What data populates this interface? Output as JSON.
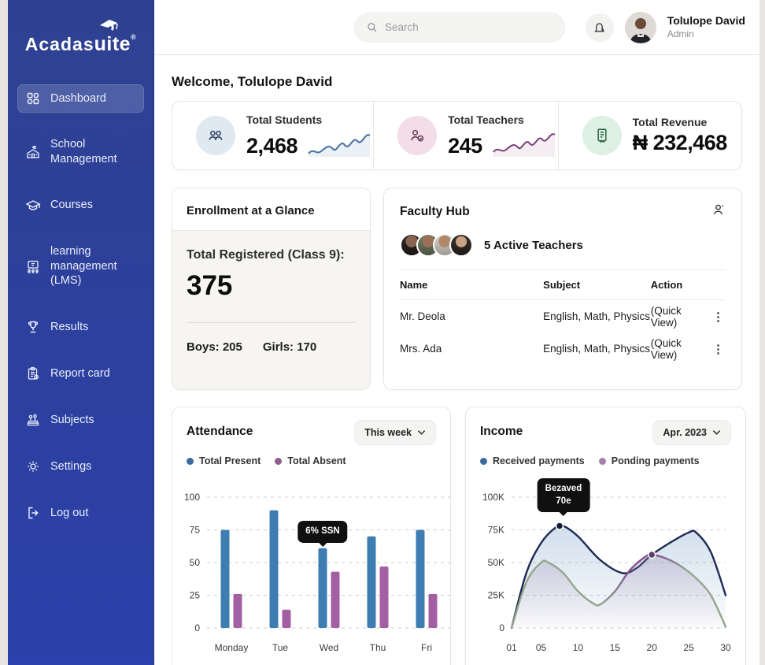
{
  "sidebar": {
    "logo": {
      "part1": "Acadas",
      "part2": "uite",
      "reg": "®"
    },
    "items": [
      {
        "label": "Dashboard",
        "icon": "dashboard-grid-icon",
        "active": true
      },
      {
        "label": "School Management",
        "icon": "school-icon",
        "active": false
      },
      {
        "label": "Courses",
        "icon": "graduation-cap-icon",
        "active": false
      },
      {
        "label": "learning management (LMS)",
        "icon": "lms-screen-icon",
        "active": false
      },
      {
        "label": "Results",
        "icon": "trophy-icon",
        "active": false
      },
      {
        "label": "Report card",
        "icon": "report-card-icon",
        "active": false
      },
      {
        "label": "Subjects",
        "icon": "books-icon",
        "active": false
      },
      {
        "label": "Settings",
        "icon": "gear-icon",
        "active": false
      },
      {
        "label": "Log out",
        "icon": "logout-icon",
        "active": false
      }
    ]
  },
  "topbar": {
    "search_placeholder": "Search",
    "user_name": "Tolulope David",
    "user_role": "Admin"
  },
  "welcome": "Welcome, Tolulope David",
  "stats": [
    {
      "label": "Total Students",
      "value": "2,468"
    },
    {
      "label": "Total Teachers",
      "value": "245"
    },
    {
      "label": "Total Revenue",
      "value": "₦ 232,468"
    }
  ],
  "enrollment": {
    "title": "Enrollment at a Glance",
    "registered_label": "Total Registered (Class 9):",
    "registered_value": "375",
    "boys": "Boys: 205",
    "girls": "Girls: 170"
  },
  "faculty": {
    "title": "Faculty Hub",
    "active_teachers": "5 Active Teachers",
    "columns": [
      "Name",
      "Subject",
      "Action"
    ],
    "rows": [
      {
        "name": "Mr. Deola",
        "subject": "English, Math, Physics",
        "action": "(Quick View)"
      },
      {
        "name": "Mrs. Ada",
        "subject": "English, Math, Physics",
        "action": "(Quick View)"
      }
    ]
  },
  "attendance": {
    "title": "Attendance",
    "period": "This week",
    "legend": [
      "Total Present",
      "Total Absent"
    ],
    "tooltip": "6% SSN"
  },
  "income": {
    "title": "Income",
    "period": "Apr. 2023",
    "legend": [
      "Received payments",
      "Ponding payments"
    ],
    "tooltip_line1": "Bezaved",
    "tooltip_line2": "70e"
  },
  "chart_data": [
    {
      "type": "bar",
      "title": "Attendance",
      "categories": [
        "Monday",
        "Tue",
        "Wed",
        "Thu",
        "Fri"
      ],
      "series": [
        {
          "name": "Total Present",
          "color": "#3d7db2",
          "values": [
            75,
            90,
            61,
            70,
            75
          ]
        },
        {
          "name": "Total Absent",
          "color": "#a35fa3",
          "values": [
            26,
            14,
            43,
            47,
            26
          ]
        }
      ],
      "ylim": [
        0,
        100
      ],
      "yticks": [
        0,
        25,
        50,
        75,
        100
      ],
      "grid": true,
      "legend_position": "top-left",
      "annotation": {
        "text": "6% SSN",
        "category": "Wed",
        "series": "Total Present"
      }
    },
    {
      "type": "line",
      "title": "Income",
      "x_domain": [
        1,
        30
      ],
      "x_ticks": [
        1,
        5,
        10,
        15,
        20,
        25,
        30
      ],
      "x_tick_labels": [
        "01",
        "05",
        "10",
        "15",
        "20",
        "25",
        "30"
      ],
      "ylim_k": [
        0,
        100
      ],
      "yticks_k": [
        0,
        25,
        50,
        75,
        100
      ],
      "ytick_labels": [
        "0",
        "25K",
        "50K",
        "75K",
        "100K"
      ],
      "grid": true,
      "legend_position": "top-left",
      "series": [
        {
          "name": "Received payments",
          "color": "#1d2a52",
          "fill": "fillBlue",
          "points": [
            [
              1,
              0
            ],
            [
              3,
              42
            ],
            [
              5,
              65
            ],
            [
              7,
              77
            ],
            [
              8,
              78
            ],
            [
              10,
              70
            ],
            [
              13,
              52
            ],
            [
              16,
              42
            ],
            [
              18,
              46
            ],
            [
              20,
              56
            ],
            [
              23,
              67
            ],
            [
              25,
              73
            ],
            [
              26,
              73
            ],
            [
              28,
              58
            ],
            [
              30,
              25
            ]
          ]
        },
        {
          "name": "Ponding payments",
          "color": "url(#gradPend)",
          "fill": "fillPurp",
          "points": [
            [
              1,
              0
            ],
            [
              3,
              35
            ],
            [
              5,
              50
            ],
            [
              6,
              50
            ],
            [
              8,
              42
            ],
            [
              10,
              28
            ],
            [
              12,
              19
            ],
            [
              13,
              18
            ],
            [
              15,
              28
            ],
            [
              17,
              44
            ],
            [
              19,
              54
            ],
            [
              20,
              56
            ],
            [
              22,
              53
            ],
            [
              24,
              47
            ],
            [
              26,
              38
            ],
            [
              28,
              25
            ],
            [
              30,
              1
            ]
          ]
        }
      ],
      "markers": [
        {
          "x": 7.5,
          "y": 78,
          "color": "#141a33",
          "tooltip": "Bezaved 70e"
        },
        {
          "x": 20,
          "y": 56,
          "color": "#5c3f6e"
        }
      ]
    }
  ]
}
